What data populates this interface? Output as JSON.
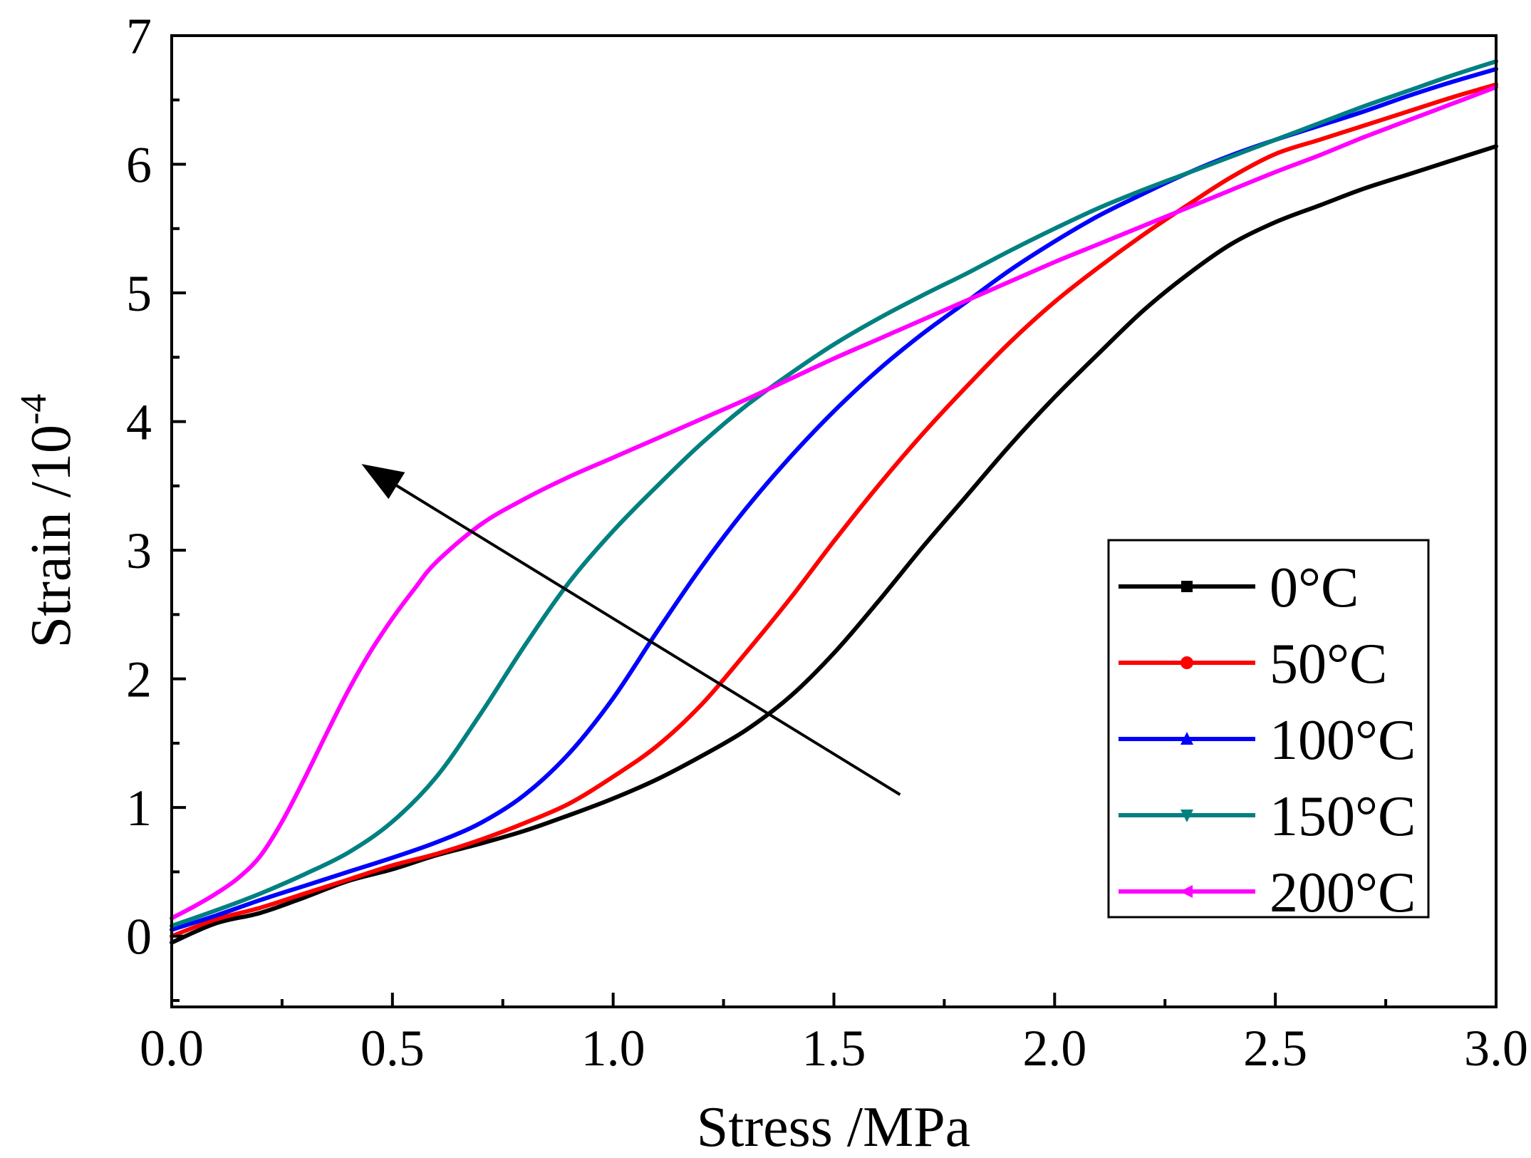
{
  "chart_data": {
    "type": "line",
    "title": "",
    "xlabel": "Stress /MPa",
    "ylabel": {
      "base": "Strain /10",
      "exponent": "-4"
    },
    "xlim": [
      0.0,
      3.0
    ],
    "ylim": [
      -0.55,
      7.0
    ],
    "x_ticks": [
      "0.0",
      "0.5",
      "1.0",
      "1.5",
      "2.0",
      "2.5",
      "3.0"
    ],
    "y_ticks": [
      "0",
      "1",
      "2",
      "3",
      "4",
      "5",
      "6",
      "7"
    ],
    "grid": false,
    "legend_position": "bottom-right",
    "annotation": {
      "type": "arrow",
      "from": [
        1.65,
        1.1
      ],
      "to": [
        0.43,
        3.67
      ],
      "meaning": "increasing temperature"
    },
    "series": [
      {
        "name": "0°C",
        "color": "#000000",
        "marker": "square",
        "points": [
          [
            0.0,
            -0.05
          ],
          [
            0.1,
            0.1
          ],
          [
            0.2,
            0.18
          ],
          [
            0.3,
            0.3
          ],
          [
            0.4,
            0.43
          ],
          [
            0.5,
            0.52
          ],
          [
            0.6,
            0.63
          ],
          [
            0.7,
            0.72
          ],
          [
            0.8,
            0.82
          ],
          [
            0.9,
            0.94
          ],
          [
            1.0,
            1.07
          ],
          [
            1.1,
            1.22
          ],
          [
            1.2,
            1.4
          ],
          [
            1.3,
            1.6
          ],
          [
            1.4,
            1.86
          ],
          [
            1.5,
            2.2
          ],
          [
            1.6,
            2.6
          ],
          [
            1.7,
            3.02
          ],
          [
            1.8,
            3.42
          ],
          [
            1.9,
            3.82
          ],
          [
            2.0,
            4.19
          ],
          [
            2.1,
            4.53
          ],
          [
            2.2,
            4.86
          ],
          [
            2.3,
            5.14
          ],
          [
            2.4,
            5.38
          ],
          [
            2.5,
            5.55
          ],
          [
            2.6,
            5.68
          ],
          [
            2.7,
            5.81
          ],
          [
            2.8,
            5.92
          ],
          [
            2.9,
            6.03
          ],
          [
            3.0,
            6.14
          ]
        ]
      },
      {
        "name": "50°C",
        "color": "#ff0000",
        "marker": "circle",
        "points": [
          [
            0.0,
            0.0
          ],
          [
            0.1,
            0.13
          ],
          [
            0.2,
            0.22
          ],
          [
            0.3,
            0.33
          ],
          [
            0.4,
            0.44
          ],
          [
            0.5,
            0.55
          ],
          [
            0.6,
            0.64
          ],
          [
            0.7,
            0.75
          ],
          [
            0.8,
            0.88
          ],
          [
            0.9,
            1.03
          ],
          [
            1.0,
            1.24
          ],
          [
            1.1,
            1.48
          ],
          [
            1.2,
            1.8
          ],
          [
            1.3,
            2.2
          ],
          [
            1.4,
            2.62
          ],
          [
            1.5,
            3.07
          ],
          [
            1.6,
            3.5
          ],
          [
            1.7,
            3.9
          ],
          [
            1.8,
            4.27
          ],
          [
            1.9,
            4.62
          ],
          [
            2.0,
            4.93
          ],
          [
            2.1,
            5.2
          ],
          [
            2.2,
            5.45
          ],
          [
            2.3,
            5.68
          ],
          [
            2.4,
            5.9
          ],
          [
            2.5,
            6.08
          ],
          [
            2.6,
            6.19
          ],
          [
            2.7,
            6.3
          ],
          [
            2.8,
            6.41
          ],
          [
            2.9,
            6.52
          ],
          [
            3.0,
            6.62
          ]
        ]
      },
      {
        "name": "100°C",
        "color": "#0000ff",
        "marker": "triangle-up",
        "points": [
          [
            0.0,
            0.05
          ],
          [
            0.1,
            0.16
          ],
          [
            0.2,
            0.28
          ],
          [
            0.3,
            0.39
          ],
          [
            0.4,
            0.5
          ],
          [
            0.5,
            0.61
          ],
          [
            0.6,
            0.73
          ],
          [
            0.7,
            0.88
          ],
          [
            0.8,
            1.1
          ],
          [
            0.9,
            1.42
          ],
          [
            1.0,
            1.85
          ],
          [
            1.1,
            2.37
          ],
          [
            1.2,
            2.87
          ],
          [
            1.3,
            3.32
          ],
          [
            1.4,
            3.72
          ],
          [
            1.5,
            4.08
          ],
          [
            1.6,
            4.4
          ],
          [
            1.7,
            4.68
          ],
          [
            1.8,
            4.93
          ],
          [
            1.9,
            5.18
          ],
          [
            2.0,
            5.4
          ],
          [
            2.1,
            5.6
          ],
          [
            2.2,
            5.77
          ],
          [
            2.3,
            5.93
          ],
          [
            2.4,
            6.07
          ],
          [
            2.5,
            6.19
          ],
          [
            2.6,
            6.3
          ],
          [
            2.7,
            6.41
          ],
          [
            2.8,
            6.53
          ],
          [
            2.9,
            6.64
          ],
          [
            3.0,
            6.74
          ]
        ]
      },
      {
        "name": "150°C",
        "color": "#008080",
        "marker": "triangle-down",
        "points": [
          [
            0.0,
            0.08
          ],
          [
            0.1,
            0.2
          ],
          [
            0.2,
            0.33
          ],
          [
            0.3,
            0.48
          ],
          [
            0.4,
            0.65
          ],
          [
            0.5,
            0.89
          ],
          [
            0.6,
            1.24
          ],
          [
            0.7,
            1.73
          ],
          [
            0.8,
            2.26
          ],
          [
            0.9,
            2.75
          ],
          [
            1.0,
            3.15
          ],
          [
            1.1,
            3.5
          ],
          [
            1.2,
            3.83
          ],
          [
            1.3,
            4.12
          ],
          [
            1.4,
            4.37
          ],
          [
            1.5,
            4.6
          ],
          [
            1.6,
            4.8
          ],
          [
            1.7,
            4.98
          ],
          [
            1.8,
            5.15
          ],
          [
            1.9,
            5.33
          ],
          [
            2.0,
            5.5
          ],
          [
            2.1,
            5.66
          ],
          [
            2.2,
            5.8
          ],
          [
            2.3,
            5.93
          ],
          [
            2.4,
            6.06
          ],
          [
            2.5,
            6.19
          ],
          [
            2.6,
            6.32
          ],
          [
            2.7,
            6.45
          ],
          [
            2.8,
            6.57
          ],
          [
            2.9,
            6.69
          ],
          [
            3.0,
            6.8
          ]
        ]
      },
      {
        "name": "200°C",
        "color": "#ff00ff",
        "marker": "triangle-left",
        "points": [
          [
            0.0,
            0.14
          ],
          [
            0.05,
            0.23
          ],
          [
            0.1,
            0.33
          ],
          [
            0.15,
            0.45
          ],
          [
            0.2,
            0.62
          ],
          [
            0.25,
            0.89
          ],
          [
            0.3,
            1.22
          ],
          [
            0.35,
            1.57
          ],
          [
            0.4,
            1.91
          ],
          [
            0.45,
            2.21
          ],
          [
            0.5,
            2.47
          ],
          [
            0.55,
            2.7
          ],
          [
            0.6,
            2.91
          ],
          [
            0.7,
            3.2
          ],
          [
            0.8,
            3.4
          ],
          [
            0.9,
            3.57
          ],
          [
            1.0,
            3.72
          ],
          [
            1.1,
            3.87
          ],
          [
            1.2,
            4.02
          ],
          [
            1.3,
            4.17
          ],
          [
            1.4,
            4.33
          ],
          [
            1.5,
            4.49
          ],
          [
            1.6,
            4.64
          ],
          [
            1.7,
            4.79
          ],
          [
            1.8,
            4.94
          ],
          [
            1.9,
            5.09
          ],
          [
            2.0,
            5.24
          ],
          [
            2.1,
            5.38
          ],
          [
            2.2,
            5.52
          ],
          [
            2.3,
            5.66
          ],
          [
            2.4,
            5.8
          ],
          [
            2.5,
            5.94
          ],
          [
            2.6,
            6.07
          ],
          [
            2.7,
            6.21
          ],
          [
            2.8,
            6.34
          ],
          [
            2.9,
            6.47
          ],
          [
            3.0,
            6.6
          ]
        ]
      }
    ]
  }
}
